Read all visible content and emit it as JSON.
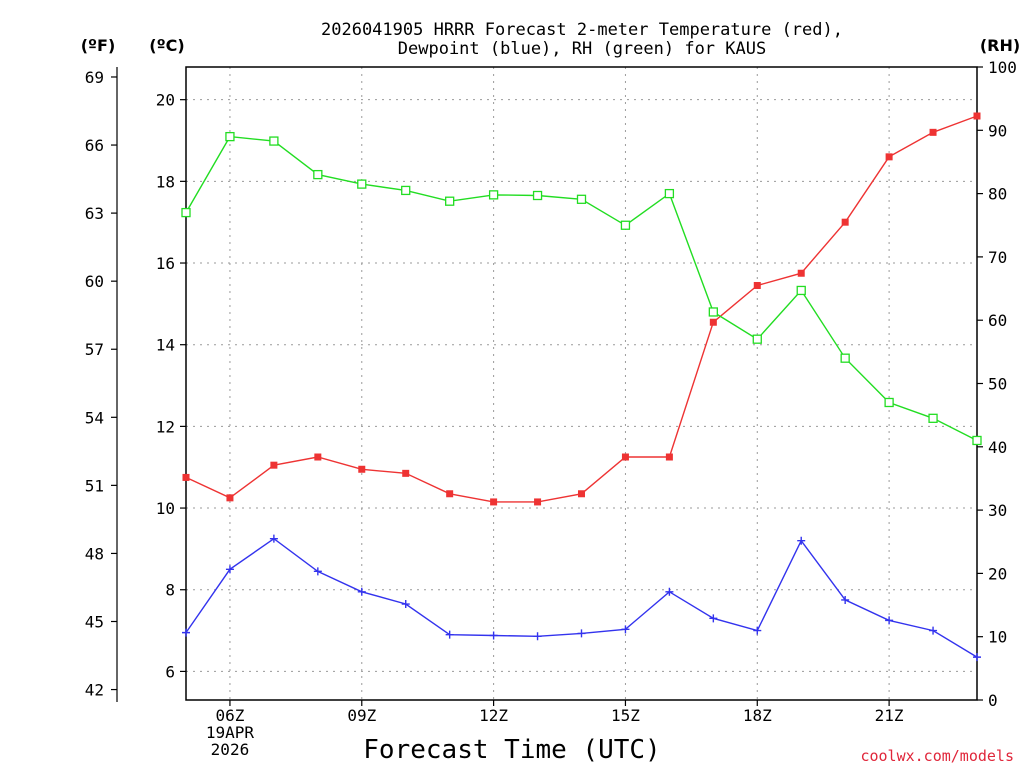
{
  "chart_data": {
    "type": "line",
    "title_lines": [
      "2026041905 HRRR Forecast 2-meter Temperature (red),",
      "Dewpoint (blue), RH (green) for KAUS"
    ],
    "xlabel": "Forecast Time (UTC)",
    "credit": "coolwx.com/models",
    "left_f_unit": "(ºF)",
    "left_c_unit": "(ºC)",
    "right_unit": "(RH)",
    "x_hours": [
      5,
      6,
      7,
      8,
      9,
      10,
      11,
      12,
      13,
      14,
      15,
      16,
      17,
      18,
      19,
      20,
      21,
      22,
      23
    ],
    "x_ticks": [
      {
        "hour": 6,
        "lines": [
          "06Z",
          "19APR",
          "2026"
        ]
      },
      {
        "hour": 9,
        "lines": [
          "09Z"
        ]
      },
      {
        "hour": 12,
        "lines": [
          "12Z"
        ]
      },
      {
        "hour": 15,
        "lines": [
          "15Z"
        ]
      },
      {
        "hour": 18,
        "lines": [
          "18Z"
        ]
      },
      {
        "hour": 21,
        "lines": [
          "21Z"
        ]
      }
    ],
    "xlim": [
      5,
      23
    ],
    "c_axis": {
      "ylim": [
        5.3,
        20.8
      ],
      "ticks": [
        6,
        8,
        10,
        12,
        14,
        16,
        18,
        20
      ]
    },
    "f_axis": {
      "ticks": [
        42,
        45,
        48,
        51,
        54,
        57,
        60,
        63,
        66,
        69
      ]
    },
    "rh_axis": {
      "ylim": [
        0,
        100
      ],
      "ticks": [
        0,
        10,
        20,
        30,
        40,
        50,
        60,
        70,
        80,
        90,
        100
      ]
    },
    "series": [
      {
        "name": "Temperature",
        "axis": "c",
        "color": "#ee3333",
        "marker": "filled-square",
        "values": [
          10.75,
          10.25,
          11.05,
          11.25,
          10.95,
          10.85,
          10.35,
          10.15,
          10.15,
          10.35,
          11.25,
          11.25,
          14.55,
          15.45,
          15.75,
          17.0,
          18.6,
          19.2,
          19.6
        ]
      },
      {
        "name": "Dewpoint",
        "axis": "c",
        "color": "#3333ee",
        "marker": "plus",
        "values": [
          6.95,
          8.5,
          9.25,
          8.45,
          7.95,
          7.65,
          6.9,
          6.88,
          6.86,
          6.93,
          7.03,
          7.95,
          7.3,
          7.0,
          9.2,
          7.75,
          7.25,
          7.0,
          6.35
        ]
      },
      {
        "name": "RH",
        "axis": "rh",
        "color": "#22dd22",
        "marker": "open-square",
        "values": [
          77.0,
          89.0,
          88.3,
          83.0,
          81.5,
          80.5,
          78.8,
          79.8,
          79.7,
          79.1,
          75.0,
          80.0,
          61.3,
          57.0,
          64.7,
          54.0,
          47.0,
          44.5,
          41.0
        ]
      }
    ]
  }
}
